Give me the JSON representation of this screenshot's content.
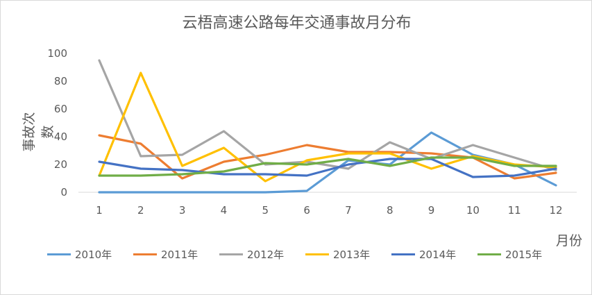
{
  "chart_data": {
    "type": "line",
    "title": "云梧高速公路每年交通事故月分布",
    "xlabel": "月份",
    "ylabel": "事故次数",
    "categories": [
      "1",
      "2",
      "3",
      "4",
      "5",
      "6",
      "7",
      "8",
      "9",
      "10",
      "11",
      "12"
    ],
    "ylim": [
      0,
      100
    ],
    "yticks": [
      "0",
      "20",
      "40",
      "60",
      "80",
      "100"
    ],
    "grid": false,
    "legend_position": "bottom",
    "series": [
      {
        "name": "2010年",
        "color": "#5b9bd5",
        "values": [
          0,
          0,
          0,
          0,
          0,
          1,
          23,
          20,
          43,
          27,
          20,
          5
        ]
      },
      {
        "name": "2011年",
        "color": "#ed7d31",
        "values": [
          41,
          35,
          10,
          22,
          27,
          34,
          29,
          29,
          28,
          25,
          10,
          14
        ]
      },
      {
        "name": "2012年",
        "color": "#a5a5a5",
        "values": [
          95,
          26,
          27,
          44,
          20,
          22,
          17,
          36,
          24,
          34,
          25,
          16
        ]
      },
      {
        "name": "2013年",
        "color": "#ffc000",
        "values": [
          12,
          86,
          19,
          32,
          8,
          23,
          28,
          28,
          17,
          26,
          20,
          18
        ]
      },
      {
        "name": "2014年",
        "color": "#4472c4",
        "values": [
          22,
          17,
          16,
          13,
          13,
          12,
          20,
          24,
          24,
          11,
          12,
          17
        ]
      },
      {
        "name": "2015年",
        "color": "#70ad47",
        "values": [
          12,
          12,
          13,
          15,
          21,
          20,
          24,
          19,
          25,
          25,
          19,
          19
        ]
      }
    ]
  }
}
